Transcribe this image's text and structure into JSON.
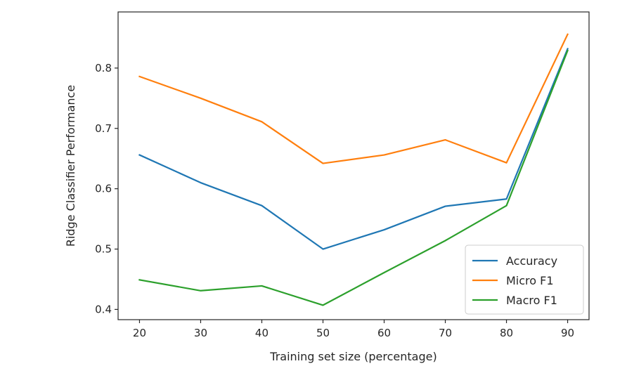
{
  "chart_data": {
    "type": "line",
    "title": "",
    "xlabel": "Training set size (percentage)",
    "ylabel": "Ridge Classifier Performance",
    "x": [
      20,
      30,
      40,
      50,
      60,
      70,
      80,
      90
    ],
    "xlim": [
      16.5,
      93.5
    ],
    "ylim": [
      0.383,
      0.893
    ],
    "xticks": [
      20,
      30,
      40,
      50,
      60,
      70,
      80,
      90
    ],
    "yticks": [
      0.4,
      0.5,
      0.6,
      0.7,
      0.8
    ],
    "xtick_labels": [
      "20",
      "30",
      "40",
      "50",
      "60",
      "70",
      "80",
      "90"
    ],
    "ytick_labels": [
      "0.4",
      "0.5",
      "0.6",
      "0.7",
      "0.8"
    ],
    "grid": false,
    "legend_position": "lower-right",
    "series": [
      {
        "name": "Accuracy",
        "color": "#1f77b4",
        "values": [
          0.656,
          0.61,
          0.572,
          0.5,
          0.532,
          0.571,
          0.583,
          0.832
        ]
      },
      {
        "name": "Micro F1",
        "color": "#ff7f0e",
        "values": [
          0.786,
          0.75,
          0.711,
          0.642,
          0.656,
          0.681,
          0.643,
          0.856
        ]
      },
      {
        "name": "Macro F1",
        "color": "#2ca02c",
        "values": [
          0.449,
          0.431,
          0.439,
          0.407,
          0.461,
          0.514,
          0.572,
          0.829
        ]
      }
    ]
  }
}
